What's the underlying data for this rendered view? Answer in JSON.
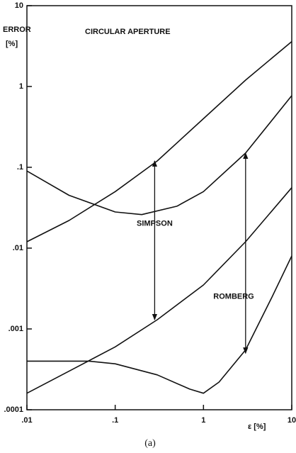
{
  "chart_data": {
    "type": "line",
    "title": "CIRCULAR APERTURE",
    "y_label": "ERROR",
    "y_unit": "[%]",
    "x_label": "ε [%]",
    "caption": "(a)",
    "xscale": "log",
    "yscale": "log",
    "color": "#111111",
    "xlim": [
      0.01,
      10
    ],
    "xticks": [
      {
        "value": 0.01,
        "label": ".01"
      },
      {
        "value": 0.1,
        "label": ".1"
      },
      1,
      10
    ],
    "ylim": [
      0.0001,
      10
    ],
    "yticks": [
      {
        "value": 0.0001,
        "label": ".0001"
      },
      {
        "value": 0.001,
        "label": ".001"
      },
      {
        "value": 0.01,
        "label": ".01"
      },
      {
        "value": 0.1,
        "label": ".1"
      },
      1,
      10
    ],
    "series": [
      {
        "x": [
          0.01,
          0.03,
          0.1,
          0.3,
          1,
          3,
          10
        ],
        "values": [
          0.012,
          0.022,
          0.05,
          0.12,
          0.4,
          1.2,
          3.6
        ]
      },
      {
        "x": [
          0.01,
          0.03,
          0.1,
          0.2,
          0.5,
          1,
          3,
          10
        ],
        "values": [
          0.09,
          0.045,
          0.028,
          0.026,
          0.033,
          0.05,
          0.15,
          0.77
        ]
      },
      {
        "x": [
          0.01,
          0.03,
          0.1,
          0.3,
          1,
          3,
          10
        ],
        "values": [
          0.00016,
          0.0003,
          0.0006,
          0.0013,
          0.0035,
          0.012,
          0.056
        ]
      },
      {
        "x": [
          0.01,
          0.05,
          0.1,
          0.3,
          0.7,
          1,
          1.5,
          3,
          6,
          10
        ],
        "values": [
          0.0004,
          0.0004,
          0.00037,
          0.00027,
          0.00018,
          0.00016,
          0.00022,
          0.00055,
          0.0025,
          0.008
        ]
      }
    ],
    "annotations": [
      {
        "text": "SIMPSON",
        "x": 0.28,
        "y": 0.02,
        "arrow": {
          "x": 0.28,
          "y1": 0.12,
          "y2": 0.0013
        }
      },
      {
        "text": "ROMBERG",
        "x": 2.2,
        "y": 0.0025,
        "arrow": {
          "x": 3,
          "y1": 0.15,
          "y2": 0.0005
        }
      }
    ]
  }
}
